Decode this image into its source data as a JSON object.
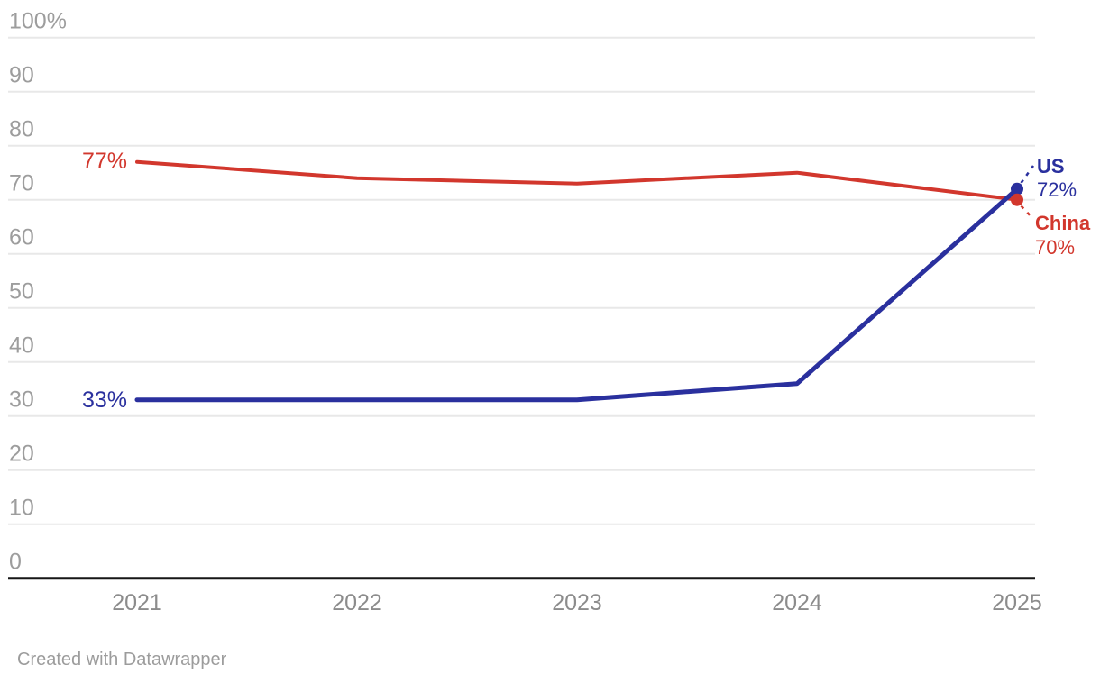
{
  "chart_data": {
    "type": "line",
    "categories": [
      "2021",
      "2022",
      "2023",
      "2024",
      "2025"
    ],
    "series": [
      {
        "name": "China",
        "values": [
          77,
          74,
          73,
          75,
          70
        ],
        "color": "#d2372d",
        "start_label": "77%",
        "end_name": "China",
        "end_value": "70%"
      },
      {
        "name": "US",
        "values": [
          33,
          33,
          33,
          36,
          72
        ],
        "color": "#2a309e",
        "start_label": "33%",
        "end_name": "US",
        "end_value": "72%"
      }
    ],
    "ylim": [
      0,
      100
    ],
    "yticks": [
      {
        "value": 100,
        "label": "100%"
      },
      {
        "value": 90,
        "label": "90"
      },
      {
        "value": 80,
        "label": "80"
      },
      {
        "value": 70,
        "label": "70"
      },
      {
        "value": 60,
        "label": "60"
      },
      {
        "value": 50,
        "label": "50"
      },
      {
        "value": 40,
        "label": "40"
      },
      {
        "value": 30,
        "label": "30"
      },
      {
        "value": 20,
        "label": "20"
      },
      {
        "value": 10,
        "label": "10"
      },
      {
        "value": 0,
        "label": "0"
      }
    ],
    "grid": true,
    "legend_position": "direct-labels-right"
  },
  "footer": {
    "credit": "Created with Datawrapper"
  },
  "colors": {
    "china": "#d2372d",
    "us": "#2a309e",
    "grid": "#e8e8e8",
    "axis": "#161616",
    "y_tick_text": "#9d9d9d",
    "x_tick_text": "#8c8c8c",
    "footer_text": "#9c9c9c"
  }
}
